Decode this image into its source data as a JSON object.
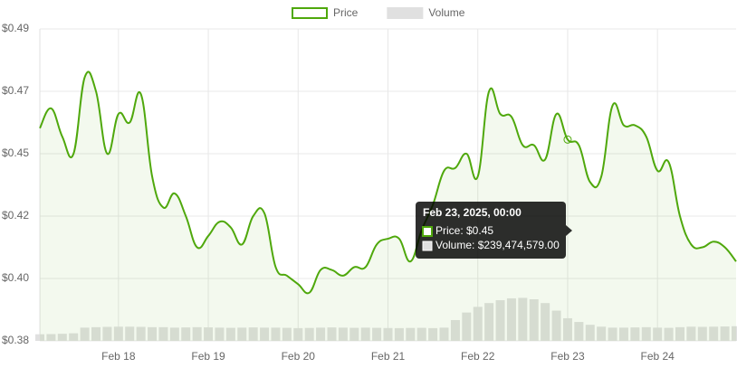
{
  "chart_data": {
    "type": "line",
    "legend": "top",
    "grid": true,
    "x": [
      "2025-02-17T03:00",
      "2025-02-17T06:00",
      "2025-02-17T09:00",
      "2025-02-17T12:00",
      "2025-02-17T15:00",
      "2025-02-17T18:00",
      "2025-02-17T21:00",
      "2025-02-18T00:00",
      "2025-02-18T03:00",
      "2025-02-18T06:00",
      "2025-02-18T09:00",
      "2025-02-18T12:00",
      "2025-02-18T15:00",
      "2025-02-18T18:00",
      "2025-02-18T21:00",
      "2025-02-19T00:00",
      "2025-02-19T03:00",
      "2025-02-19T06:00",
      "2025-02-19T09:00",
      "2025-02-19T12:00",
      "2025-02-19T15:00",
      "2025-02-19T18:00",
      "2025-02-19T21:00",
      "2025-02-20T00:00",
      "2025-02-20T03:00",
      "2025-02-20T06:00",
      "2025-02-20T09:00",
      "2025-02-20T12:00",
      "2025-02-20T15:00",
      "2025-02-20T18:00",
      "2025-02-20T21:00",
      "2025-02-21T00:00",
      "2025-02-21T03:00",
      "2025-02-21T06:00",
      "2025-02-21T09:00",
      "2025-02-21T12:00",
      "2025-02-21T15:00",
      "2025-02-21T18:00",
      "2025-02-21T21:00",
      "2025-02-22T00:00",
      "2025-02-22T03:00",
      "2025-02-22T06:00",
      "2025-02-22T09:00",
      "2025-02-22T12:00",
      "2025-02-22T15:00",
      "2025-02-22T18:00",
      "2025-02-22T21:00",
      "2025-02-23T00:00",
      "2025-02-23T03:00",
      "2025-02-23T06:00",
      "2025-02-23T09:00",
      "2025-02-23T12:00",
      "2025-02-23T15:00",
      "2025-02-23T18:00",
      "2025-02-23T21:00",
      "2025-02-24T00:00",
      "2025-02-24T03:00",
      "2025-02-24T06:00",
      "2025-02-24T09:00",
      "2025-02-24T12:00",
      "2025-02-24T15:00",
      "2025-02-24T18:00",
      "2025-02-24T21:00"
    ],
    "series": [
      {
        "name": "Price",
        "color": "#4fa80c",
        "values": [
          0.455,
          0.462,
          0.452,
          0.446,
          0.473,
          0.468,
          0.446,
          0.46,
          0.457,
          0.467,
          0.438,
          0.427,
          0.432,
          0.424,
          0.413,
          0.417,
          0.422,
          0.42,
          0.414,
          0.424,
          0.425,
          0.406,
          0.403,
          0.4,
          0.397,
          0.405,
          0.405,
          0.403,
          0.406,
          0.406,
          0.414,
          0.416,
          0.416,
          0.408,
          0.419,
          0.428,
          0.44,
          0.441,
          0.446,
          0.438,
          0.468,
          0.46,
          0.459,
          0.449,
          0.449,
          0.444,
          0.46,
          0.451,
          0.449,
          0.436,
          0.438,
          0.463,
          0.456,
          0.456,
          0.452,
          0.44,
          0.443,
          0.424,
          0.414,
          0.413,
          0.415,
          0.413,
          0.408
        ]
      },
      {
        "name": "Volume",
        "color": "#e0e0e0",
        "axis": "y2",
        "type": "bar",
        "values": [
          70000000,
          72000000,
          75000000,
          80000000,
          140000000,
          145000000,
          148000000,
          150000000,
          150000000,
          148000000,
          145000000,
          145000000,
          140000000,
          142000000,
          145000000,
          143000000,
          140000000,
          138000000,
          140000000,
          142000000,
          140000000,
          140000000,
          138000000,
          135000000,
          137000000,
          140000000,
          142000000,
          140000000,
          138000000,
          140000000,
          138000000,
          136000000,
          135000000,
          137000000,
          138000000,
          135000000,
          140000000,
          220000000,
          300000000,
          360000000,
          400000000,
          430000000,
          450000000,
          455000000,
          440000000,
          400000000,
          320000000,
          239474579,
          200000000,
          170000000,
          150000000,
          140000000,
          140000000,
          142000000,
          145000000,
          140000000,
          138000000,
          145000000,
          150000000,
          148000000,
          150000000,
          152000000,
          155000000
        ]
      }
    ],
    "xlim": [
      "2025-02-17T03:00",
      "2025-02-24T21:00"
    ],
    "xticks": [
      {
        "value": "2025-02-18T00:00",
        "label": "Feb 18"
      },
      {
        "value": "2025-02-19T00:00",
        "label": "Feb 19"
      },
      {
        "value": "2025-02-20T00:00",
        "label": "Feb 20"
      },
      {
        "value": "2025-02-21T00:00",
        "label": "Feb 21"
      },
      {
        "value": "2025-02-22T00:00",
        "label": "Feb 22"
      },
      {
        "value": "2025-02-23T00:00",
        "label": "Feb 23"
      },
      {
        "value": "2025-02-24T00:00",
        "label": "Feb 24"
      }
    ],
    "ylim": [
      0.38,
      0.49
    ],
    "yticks": [
      {
        "value": 0.38,
        "label": "$0.38"
      },
      {
        "value": 0.402,
        "label": "$0.40"
      },
      {
        "value": 0.424,
        "label": "$0.42"
      },
      {
        "value": 0.446,
        "label": "$0.45"
      },
      {
        "value": 0.468,
        "label": "$0.47"
      },
      {
        "value": 0.49,
        "label": "$0.49"
      }
    ],
    "y2lim": [
      0,
      3300000000
    ],
    "tooltip": {
      "index": 47,
      "title": "Feb 23, 2025, 00:00",
      "lines": [
        "Price: $0.45",
        "Volume: $239,474,579.00"
      ]
    }
  }
}
